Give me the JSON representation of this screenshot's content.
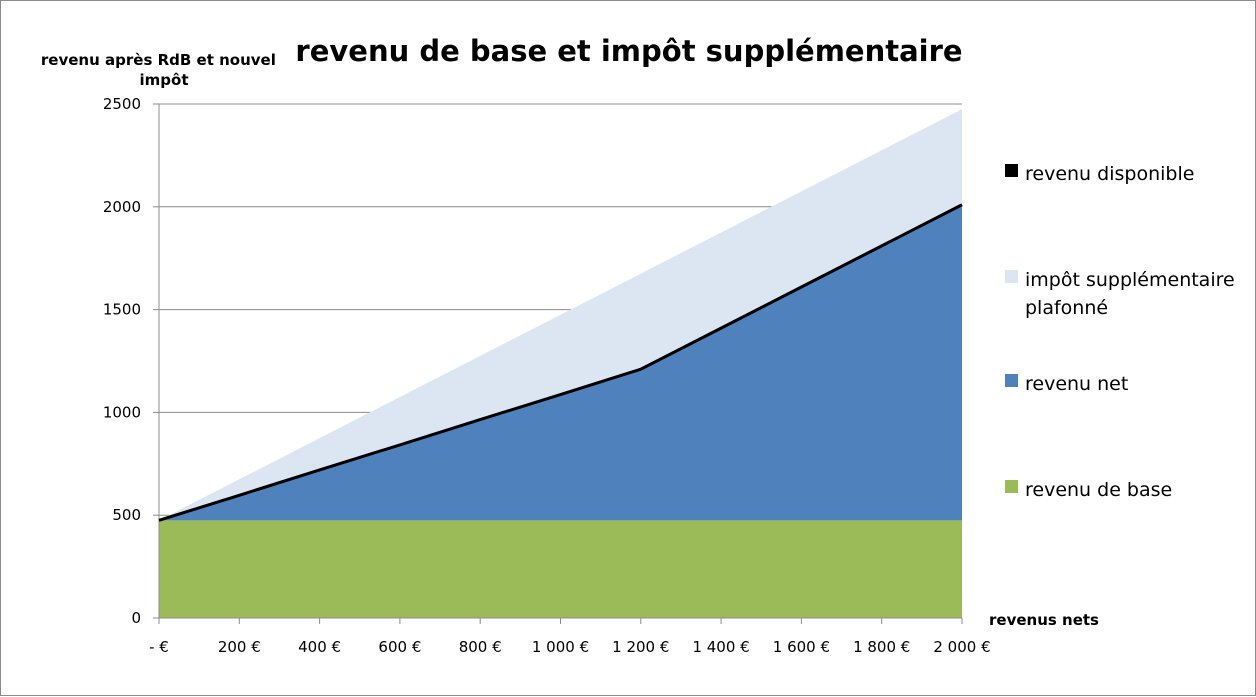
{
  "chart_data": {
    "type": "area",
    "title": "revenu de base et impôt supplémentaire",
    "ylabel": "revenu après RdB et nouvel impôt",
    "xlabel": "revenus nets",
    "x": [
      0,
      200,
      400,
      600,
      800,
      1000,
      1200,
      1400,
      1600,
      1800,
      2000
    ],
    "x_tick_labels": [
      "-  €",
      "200 €",
      "400 €",
      "600 €",
      "800 €",
      "1 000 €",
      "1 200 €",
      "1 400 €",
      "1 600 €",
      "1 800 €",
      "2 000 €"
    ],
    "y_ticks": [
      0,
      500,
      1000,
      1500,
      2000,
      2500
    ],
    "xlim": [
      0,
      2000
    ],
    "ylim": [
      0,
      2500
    ],
    "grid": true,
    "legend_position": "right",
    "stacked": true,
    "series": [
      {
        "name": "revenu de base",
        "kind": "area",
        "color": "#9bbb59",
        "values": [
          475,
          475,
          475,
          475,
          475,
          475,
          475,
          475,
          475,
          475,
          475
        ]
      },
      {
        "name": "revenu net",
        "kind": "area",
        "color": "#4f81bd",
        "values": [
          0,
          122,
          245,
          367,
          490,
          612,
          735,
          935,
          1135,
          1335,
          1535
        ]
      },
      {
        "name": "impôt supplémentaire plafonné",
        "kind": "area",
        "color": "#dce6f2",
        "values": [
          0,
          78,
          155,
          233,
          310,
          388,
          465,
          465,
          465,
          465,
          465
        ]
      },
      {
        "name": "revenu disponible",
        "kind": "line",
        "color": "#000000",
        "values": [
          475,
          597,
          720,
          842,
          965,
          1087,
          1210,
          1410,
          1610,
          1810,
          2010
        ]
      }
    ],
    "legend": [
      {
        "label_lines": [
          "revenu disponible"
        ],
        "series": "revenu disponible"
      },
      {
        "label_lines": [
          "impôt supplémentaire",
          "plafonné"
        ],
        "series": "impôt supplémentaire plafonné"
      },
      {
        "label_lines": [
          "revenu net"
        ],
        "series": "revenu net"
      },
      {
        "label_lines": [
          "revenu de base"
        ],
        "series": "revenu de base"
      }
    ]
  }
}
